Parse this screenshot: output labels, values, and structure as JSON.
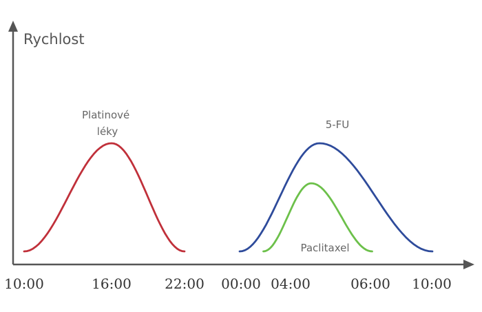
{
  "chart_data": {
    "type": "line",
    "title": "",
    "ylabel": "Rychlost",
    "xlabel": "",
    "grid": false,
    "legend": "none",
    "x_ticks": [
      "10:00",
      "16:00",
      "22:00",
      "00:00",
      "04:00",
      "06:00",
      "10:00"
    ],
    "series": [
      {
        "name": "Platinové léky",
        "label_lines": [
          "Platinové",
          "léky"
        ],
        "color": "#c0303a",
        "start": "10:00",
        "peak": "16:00",
        "end": "22:00",
        "peak_level": 1.0
      },
      {
        "name": "5-FU",
        "label_lines": [
          "5-FU"
        ],
        "color": "#2e4b9b",
        "start": "00:00",
        "peak": "05:00",
        "end": "10:00",
        "peak_level": 1.0
      },
      {
        "name": "Paclitaxel",
        "label_lines": [
          "Paclitaxel"
        ],
        "color": "#6cc04a",
        "start": "01:30",
        "peak": "04:30",
        "end": "07:30",
        "peak_level": 0.63
      }
    ]
  }
}
